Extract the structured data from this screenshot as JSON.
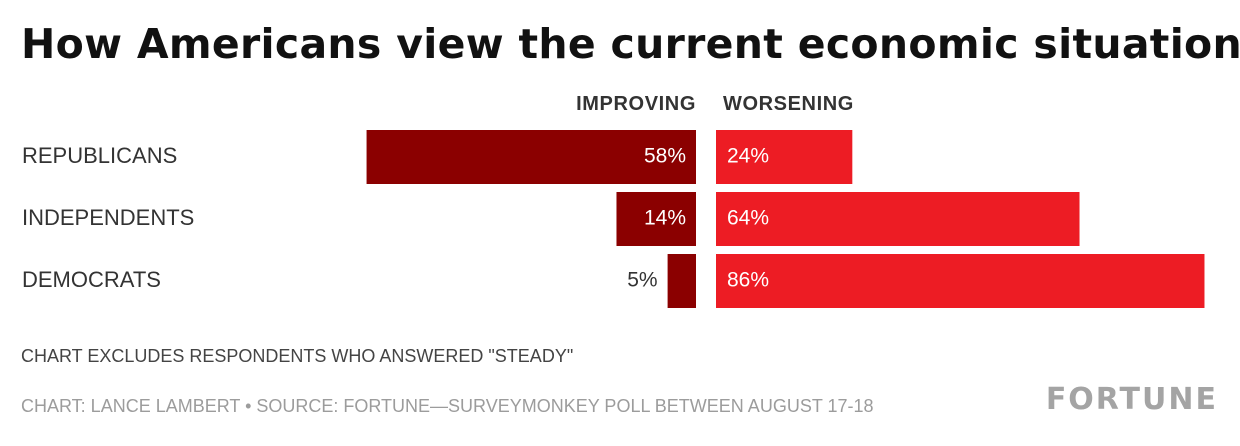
{
  "chart_data": {
    "type": "bar",
    "title": "How Americans view the current economic situation",
    "categories": [
      "REPUBLICANS",
      "INDEPENDENTS",
      "DEMOCRATS"
    ],
    "series": [
      {
        "name": "IMPROVING",
        "values": [
          58,
          14,
          5
        ],
        "labels": [
          "58%",
          "14%",
          "5%"
        ],
        "color": "#8b0000"
      },
      {
        "name": "WORSENING",
        "values": [
          24,
          64,
          86
        ],
        "labels": [
          "24%",
          "64%",
          "86%"
        ],
        "color": "#ed1c24"
      }
    ],
    "unit": "%",
    "layout": "diverging",
    "grid": false
  },
  "note": "CHART EXCLUDES RESPONDENTS WHO ANSWERED \"STEADY\"",
  "credit": "CHART: LANCE LAMBERT • SOURCE: FORTUNE—SURVEYMONKEY POLL BETWEEN AUGUST 17-18",
  "logo": "FORTUNE",
  "colors": {
    "improving": "#8b0000",
    "worsening": "#ed1c24",
    "text": "#333333",
    "muted": "#9c9c9c"
  }
}
